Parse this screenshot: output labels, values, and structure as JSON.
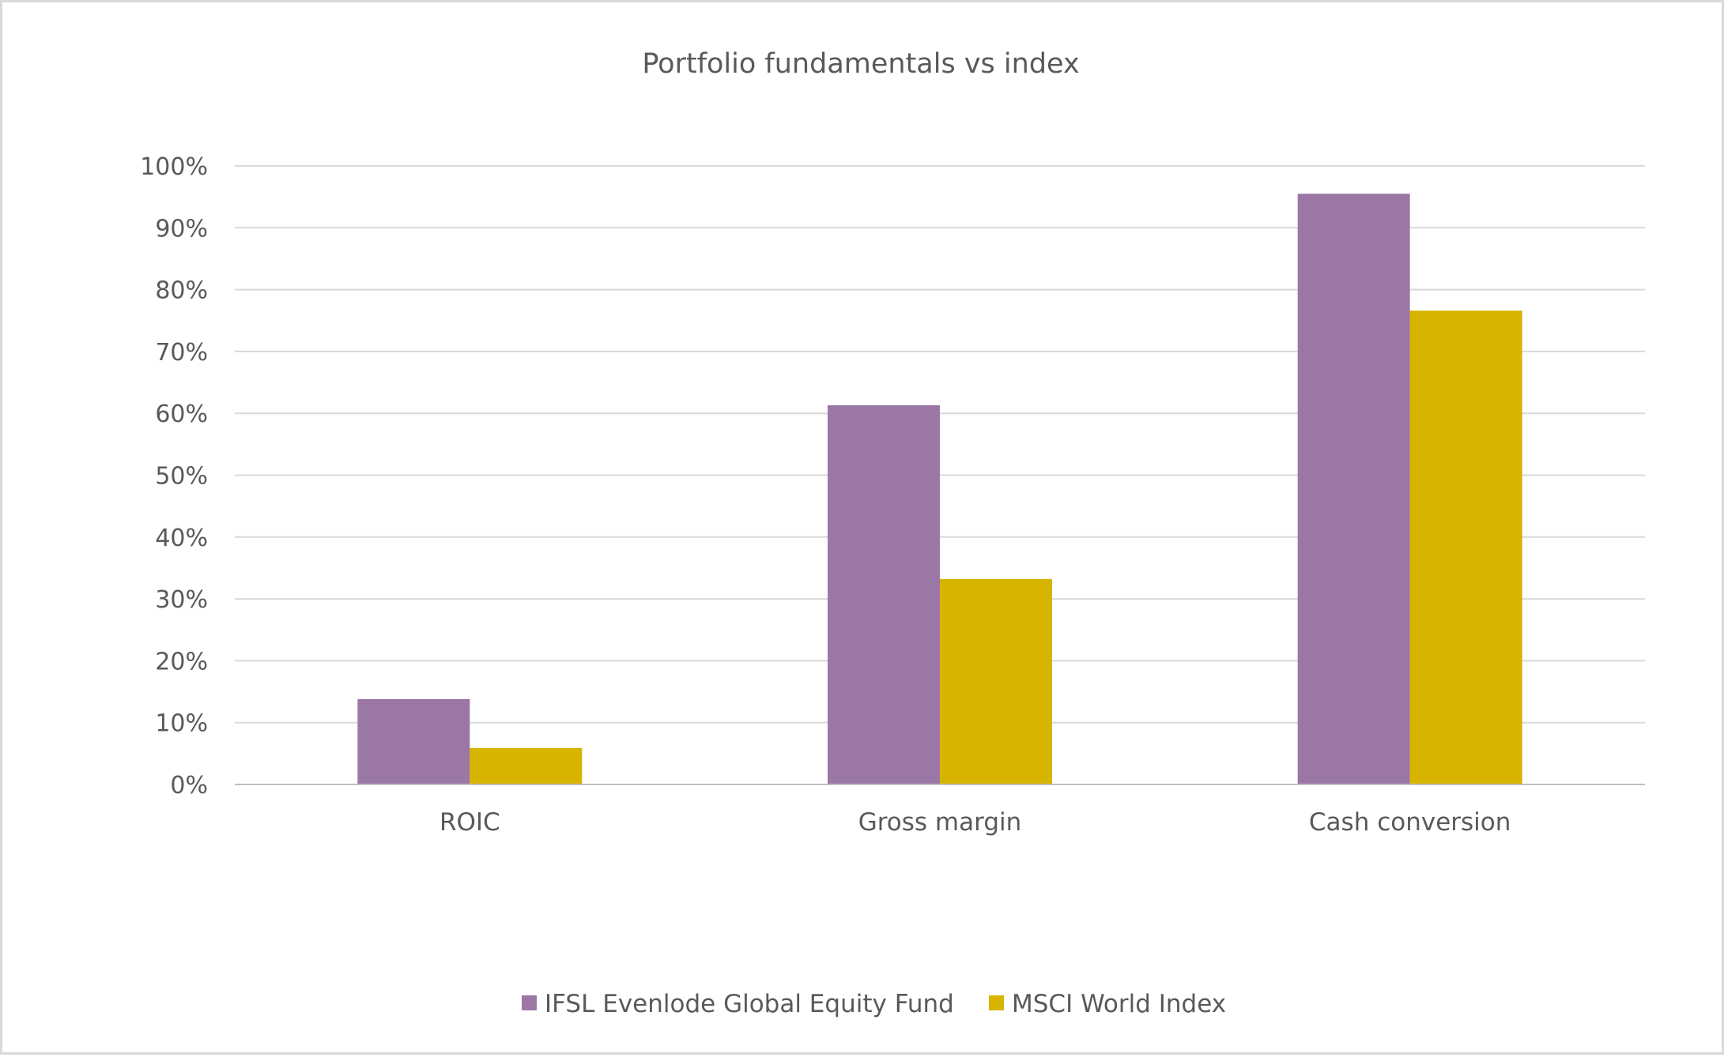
{
  "chart_data": {
    "type": "bar",
    "title": "Portfolio fundamentals vs index",
    "categories": [
      "ROIC",
      "Gross margin",
      "Cash conversion"
    ],
    "series": [
      {
        "name": "IFSL Evenlode Global Equity Fund",
        "color": "#9b77a6",
        "values": [
          13.8,
          61.3,
          95.5
        ]
      },
      {
        "name": "MSCI World Index",
        "color": "#d6b400",
        "values": [
          5.9,
          33.2,
          76.6
        ]
      }
    ],
    "yticks": [
      "0%",
      "10%",
      "20%",
      "30%",
      "40%",
      "50%",
      "60%",
      "70%",
      "80%",
      "90%",
      "100%"
    ],
    "ylim": [
      0,
      100
    ],
    "xlabel": "",
    "ylabel": "",
    "grid": true,
    "legend_position": "bottom"
  }
}
